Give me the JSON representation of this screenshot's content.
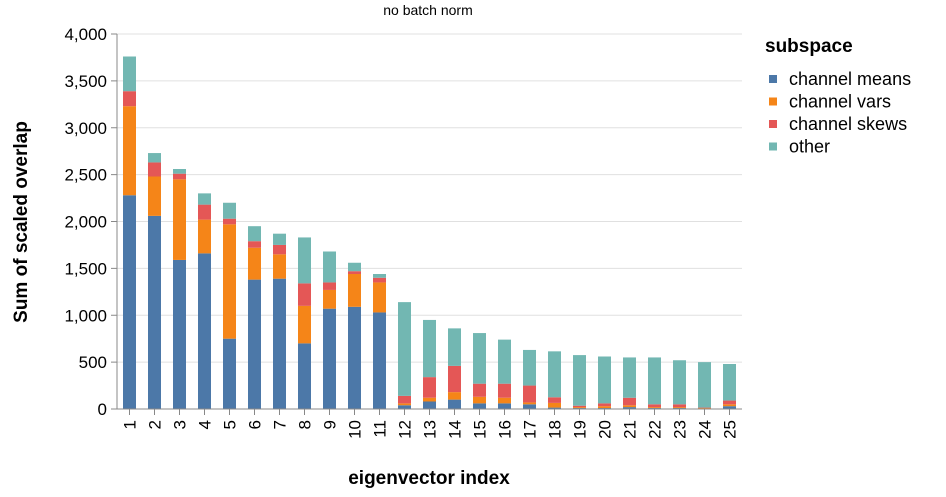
{
  "chart_data": {
    "type": "bar",
    "stacked": true,
    "title": "no batch norm",
    "xlabel": "eigenvector index",
    "ylabel": "Sum of scaled overlap",
    "ylim": [
      0,
      4000
    ],
    "yticks": [
      0,
      500,
      1000,
      1500,
      2000,
      2500,
      3000,
      3500,
      4000
    ],
    "ytick_labels": [
      "0",
      "500",
      "1,000",
      "1,500",
      "2,000",
      "2,500",
      "3,000",
      "3,500",
      "4,000"
    ],
    "grid": true,
    "legend": {
      "title": "subspace",
      "position": "right"
    },
    "categories": [
      "1",
      "2",
      "3",
      "4",
      "5",
      "6",
      "7",
      "8",
      "9",
      "10",
      "11",
      "12",
      "13",
      "14",
      "15",
      "16",
      "17",
      "18",
      "19",
      "20",
      "21",
      "22",
      "23",
      "24",
      "25"
    ],
    "series": [
      {
        "name": "channel means",
        "color": "#4c78a8",
        "values": [
          2280,
          2060,
          1590,
          1660,
          750,
          1380,
          1390,
          700,
          1070,
          1090,
          1030,
          40,
          80,
          100,
          60,
          60,
          50,
          15,
          10,
          10,
          20,
          10,
          10,
          5,
          30
        ]
      },
      {
        "name": "channel vars",
        "color": "#f58518",
        "values": [
          950,
          420,
          860,
          360,
          1220,
          340,
          260,
          400,
          200,
          350,
          320,
          20,
          40,
          80,
          70,
          60,
          20,
          50,
          10,
          20,
          20,
          10,
          10,
          5,
          20
        ]
      },
      {
        "name": "channel skews",
        "color": "#e45756",
        "values": [
          160,
          150,
          60,
          160,
          60,
          70,
          100,
          240,
          80,
          30,
          50,
          80,
          220,
          280,
          140,
          150,
          180,
          60,
          15,
          30,
          80,
          30,
          30,
          5,
          40
        ]
      },
      {
        "name": "other",
        "color": "#72b7b2",
        "values": [
          370,
          100,
          50,
          120,
          170,
          160,
          120,
          490,
          330,
          90,
          40,
          1000,
          610,
          400,
          540,
          470,
          380,
          490,
          540,
          500,
          430,
          500,
          470,
          485,
          390
        ]
      }
    ]
  }
}
